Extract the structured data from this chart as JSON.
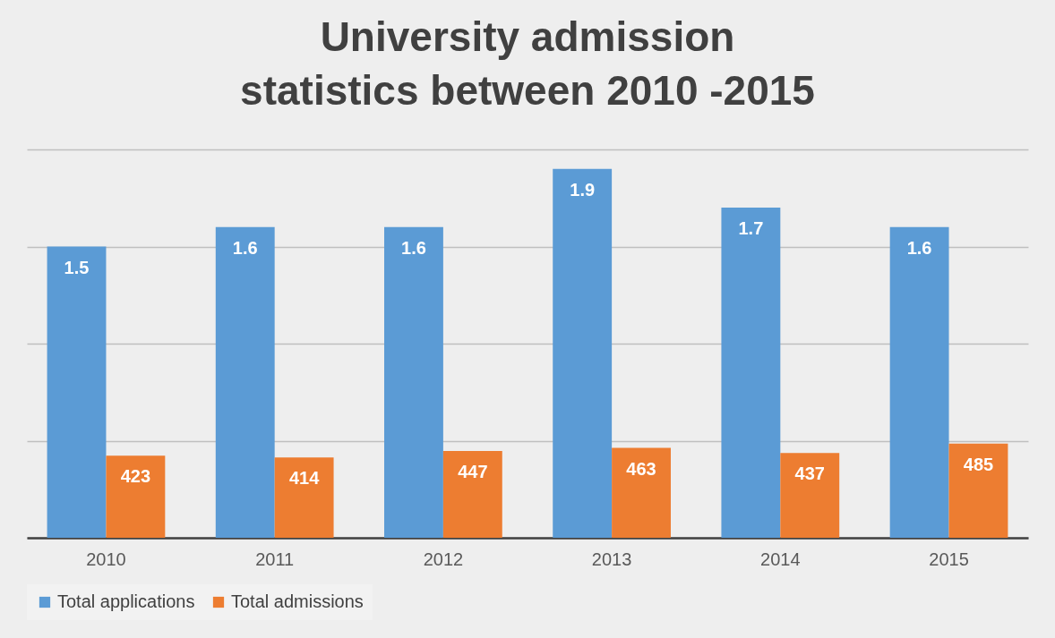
{
  "chart_data": {
    "type": "bar",
    "title": "University admission statistics between 2010 -2015",
    "categories": [
      "2010",
      "2011",
      "2012",
      "2013",
      "2014",
      "2015"
    ],
    "series": [
      {
        "name": "Total applications",
        "color": "#5b9bd5",
        "values": [
          1.5,
          1.6,
          1.6,
          1.9,
          1.7,
          1.6
        ]
      },
      {
        "name": "Total admissions",
        "color": "#ed7d31",
        "values": [
          423,
          414,
          447,
          463,
          437,
          485
        ],
        "axis": "y2"
      }
    ],
    "ylim": [
      0,
      2
    ],
    "yticks": [
      {
        "value": 0,
        "label": null
      },
      {
        "value": 0.5,
        "label": null
      },
      {
        "value": 1,
        "label": null
      },
      {
        "value": 1.5,
        "label": null
      },
      {
        "value": 2,
        "label": null
      }
    ],
    "y2lim": [
      0,
      2000
    ],
    "data_labels": true,
    "grid": "y",
    "legend": "bottom",
    "tick_labels": "x"
  }
}
